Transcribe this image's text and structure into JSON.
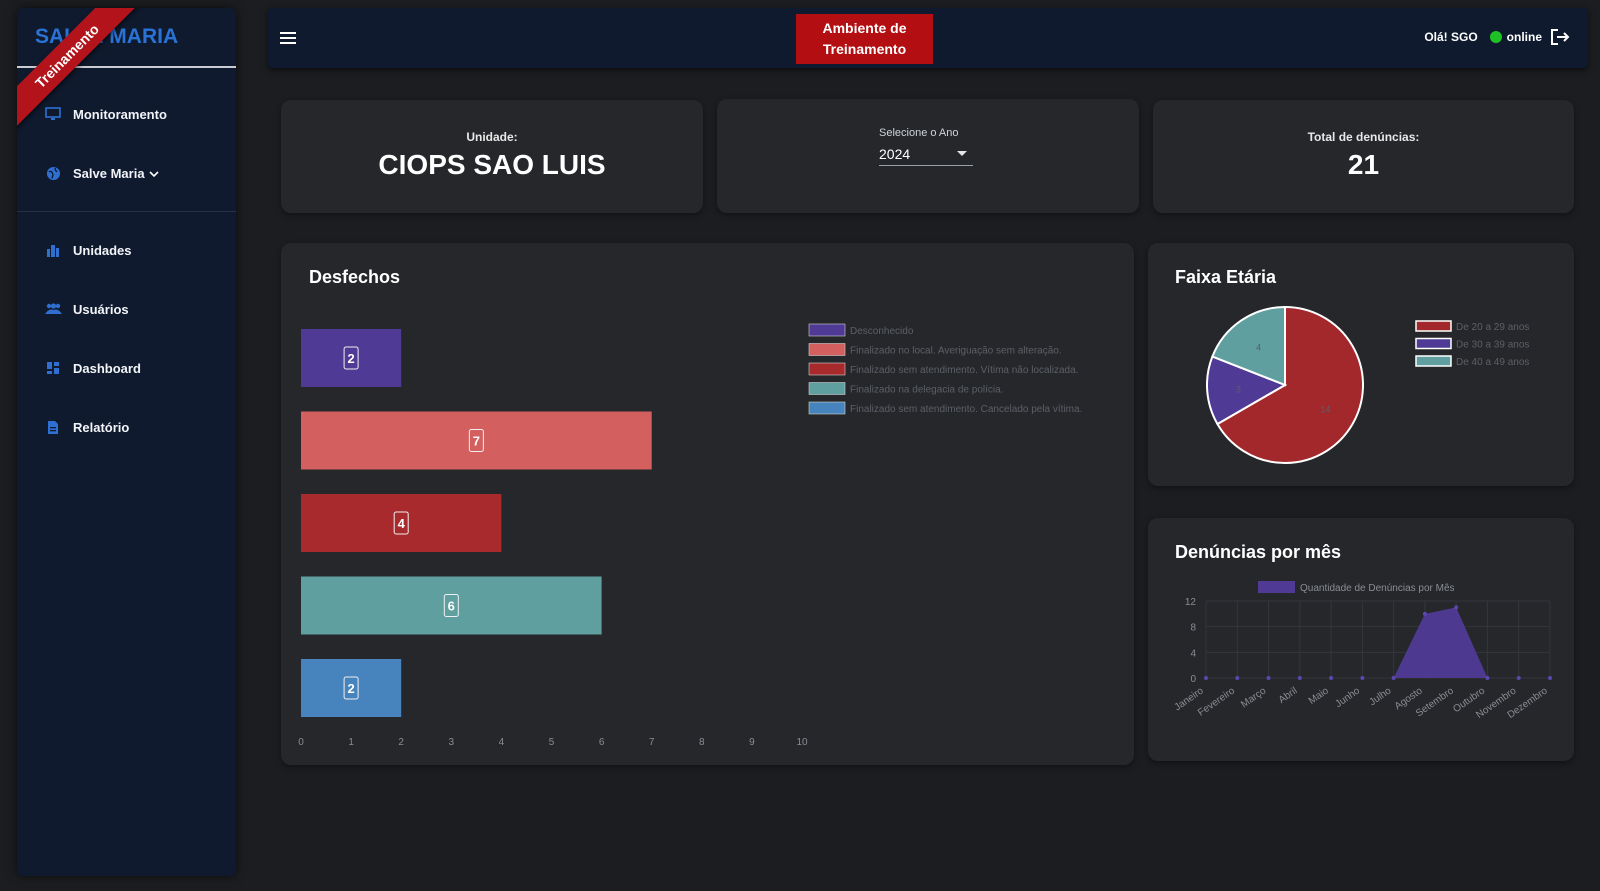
{
  "sidebar": {
    "brand": "SALVE MARIA",
    "ribbon": "Treinamento",
    "items": [
      {
        "label": "Monitoramento",
        "icon": "monitor-icon"
      },
      {
        "label": "Salve Maria",
        "icon": "globe-icon"
      },
      {
        "label": "Unidades",
        "icon": "building-icon"
      },
      {
        "label": "Usuários",
        "icon": "users-icon"
      },
      {
        "label": "Dashboard",
        "icon": "dashboard-icon"
      },
      {
        "label": "Relatório",
        "icon": "file-icon"
      }
    ]
  },
  "topbar": {
    "env_line1": "Ambiente de",
    "env_line2": "Treinamento",
    "greeting": "Olá! SGO",
    "status": "online",
    "status_color": "#1fc224"
  },
  "cards": {
    "unit_label": "Unidade:",
    "unit_value": "CIOPS SAO LUIS",
    "year_label": "Selecione o Ano",
    "year_value": "2024",
    "total_label": "Total de denúncias:",
    "total_value": "21"
  },
  "chart_data": [
    {
      "type": "bar",
      "orientation": "horizontal",
      "title": "Desfechos",
      "categories": [
        "Desconhecido",
        "Finalizado no local. Averiguação sem alteração.",
        "Finalizado sem atendimento. Vítima não localizada.",
        "Finalizado na delegacia de polícia.",
        "Finalizado sem atendimento. Cancelado pela vítima."
      ],
      "values": [
        2,
        7,
        4,
        6,
        2
      ],
      "colors": [
        "#4f3b96",
        "#d45f5f",
        "#a82a2d",
        "#5f9fa0",
        "#4784bd"
      ],
      "xlim": [
        0,
        10
      ],
      "xticks": [
        0,
        1,
        2,
        3,
        4,
        5,
        6,
        7,
        8,
        9,
        10
      ],
      "legend": "top-right"
    },
    {
      "type": "pie",
      "title": "Faixa Etária",
      "labels": [
        "De 20 a 29 anos",
        "De 30 a 39 anos",
        "De 40 a 49 anos"
      ],
      "values": [
        14,
        3,
        4
      ],
      "colors": [
        "#a3282c",
        "#4f3b96",
        "#5f9fa0"
      ],
      "legend": "right"
    },
    {
      "type": "area",
      "title": "Denúncias por mês",
      "series_name": "Quantidade de Denúncias por Mês",
      "categories": [
        "Janeiro",
        "Fevereiro",
        "Março",
        "Abril",
        "Maio",
        "Junho",
        "Julho",
        "Agosto",
        "Setembro",
        "Outubro",
        "Novembro",
        "Dezembro"
      ],
      "values": [
        0,
        0,
        0,
        0,
        0,
        0,
        0,
        10,
        11,
        0,
        0,
        0
      ],
      "ylim": [
        0,
        12
      ],
      "yticks": [
        0,
        4,
        8,
        12
      ],
      "color": "#4f3b96",
      "legend": "top"
    }
  ]
}
